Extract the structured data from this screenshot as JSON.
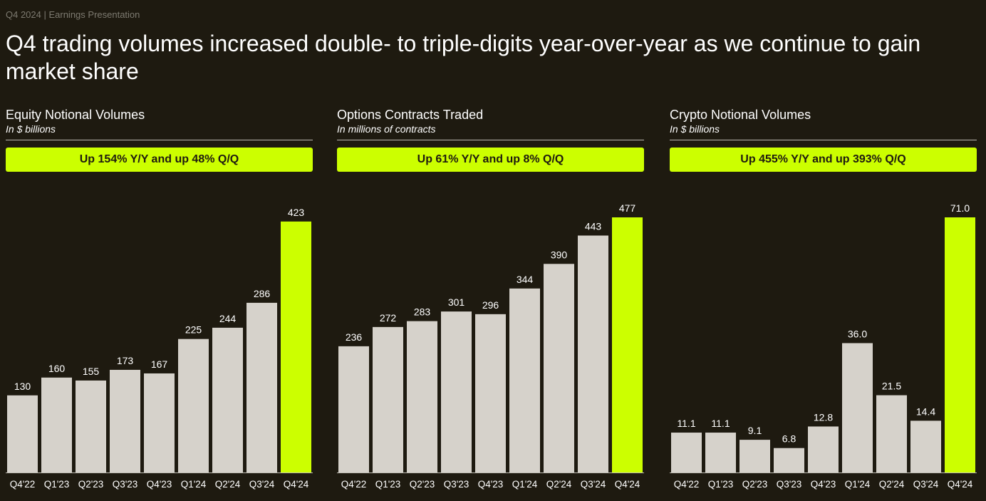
{
  "header": {
    "eyebrow": "Q4 2024 | Earnings Presentation",
    "headline": "Q4 trading volumes increased double- to triple-digits year-over-year as we continue to gain market share"
  },
  "colors": {
    "background": "#1e1a10",
    "bar": "#d6d2cb",
    "highlight": "#ccff00"
  },
  "panels": [
    {
      "title": "Equity Notional Volumes",
      "subtitle": "In $ billions",
      "banner": "Up 154% Y/Y and up 48% Q/Q"
    },
    {
      "title": "Options Contracts Traded",
      "subtitle": "In millions of contracts",
      "banner": "Up 61% Y/Y and up 8% Q/Q"
    },
    {
      "title": "Crypto Notional Volumes",
      "subtitle": "In $ billions",
      "banner": "Up 455% Y/Y and up 393% Q/Q"
    }
  ],
  "chart_data": [
    {
      "type": "bar",
      "title": "Equity Notional Volumes",
      "ylabel": "In $ billions",
      "categories": [
        "Q4'22",
        "Q1'23",
        "Q2'23",
        "Q3'23",
        "Q4'23",
        "Q1'24",
        "Q2'24",
        "Q3'24",
        "Q4'24"
      ],
      "values": [
        130,
        160,
        155,
        173,
        167,
        225,
        244,
        286,
        423
      ],
      "value_labels": [
        "130",
        "160",
        "155",
        "173",
        "167",
        "225",
        "244",
        "286",
        "423"
      ],
      "highlight_index": 8,
      "ylim": [
        0,
        430
      ],
      "grid": false,
      "legend": "none"
    },
    {
      "type": "bar",
      "title": "Options Contracts Traded",
      "ylabel": "In millions of contracts",
      "categories": [
        "Q4'22",
        "Q1'23",
        "Q2'23",
        "Q3'23",
        "Q4'23",
        "Q1'24",
        "Q2'24",
        "Q3'24",
        "Q4'24"
      ],
      "values": [
        236,
        272,
        283,
        301,
        296,
        344,
        390,
        443,
        477
      ],
      "value_labels": [
        "236",
        "272",
        "283",
        "301",
        "296",
        "344",
        "390",
        "443",
        "477"
      ],
      "highlight_index": 8,
      "ylim": [
        0,
        477
      ],
      "grid": false,
      "legend": "none"
    },
    {
      "type": "bar",
      "title": "Crypto Notional Volumes",
      "ylabel": "In $ billions",
      "categories": [
        "Q4'22",
        "Q1'23",
        "Q2'23",
        "Q3'23",
        "Q4'23",
        "Q1'24",
        "Q2'24",
        "Q3'24",
        "Q4'24"
      ],
      "values": [
        11.1,
        11.1,
        9.1,
        6.8,
        12.8,
        36.0,
        21.5,
        14.4,
        71.0
      ],
      "value_labels": [
        "11.1",
        "11.1",
        "9.1",
        "6.8",
        "12.8",
        "36.0",
        "21.5",
        "14.4",
        "71.0"
      ],
      "highlight_index": 8,
      "ylim": [
        0,
        71
      ],
      "grid": false,
      "legend": "none"
    }
  ]
}
